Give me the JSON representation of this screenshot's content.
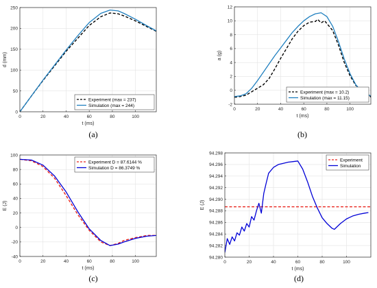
{
  "chart_data": [
    {
      "panel": "(a)",
      "type": "line",
      "xlabel": "t (ms)",
      "ylabel": "d (mm)",
      "xlim": [
        0,
        118
      ],
      "ylim": [
        0,
        250
      ],
      "xticks": [
        0,
        20,
        40,
        60,
        80,
        100
      ],
      "yticks": [
        0,
        50,
        100,
        150,
        200,
        250
      ],
      "grid": true,
      "legend_position": "bottom-right",
      "series": [
        {
          "name": "Experiment (max = 237)",
          "color": "#000000",
          "dash": "dashed",
          "x": [
            0,
            10,
            20,
            30,
            40,
            50,
            60,
            70,
            78,
            85,
            90,
            100,
            110,
            118
          ],
          "y": [
            0,
            38,
            75,
            110,
            145,
            176,
            207,
            228,
            237,
            235,
            230,
            218,
            204,
            193
          ]
        },
        {
          "name": "Simulation (max = 244)",
          "color": "#1f7fbf",
          "dash": "solid",
          "x": [
            0,
            10,
            20,
            30,
            40,
            50,
            60,
            70,
            78,
            85,
            90,
            100,
            110,
            118
          ],
          "y": [
            0,
            38,
            76,
            112,
            148,
            182,
            214,
            236,
            244,
            242,
            236,
            222,
            206,
            194
          ]
        }
      ]
    },
    {
      "panel": "(b)",
      "type": "line",
      "xlabel": "t (ms)",
      "ylabel": "a (g)",
      "xlim": [
        0,
        118
      ],
      "ylim": [
        -2,
        12
      ],
      "xticks": [
        0,
        20,
        40,
        60,
        80,
        100
      ],
      "yticks": [
        -2,
        0,
        2,
        4,
        6,
        8,
        10,
        12
      ],
      "grid": true,
      "legend_position": "bottom-right",
      "series": [
        {
          "name": "Experiment (max = 10.2)",
          "color": "#000000",
          "dash": "dashed",
          "x": [
            0,
            5,
            10,
            15,
            20,
            25,
            30,
            35,
            40,
            45,
            50,
            55,
            60,
            65,
            70,
            72,
            75,
            78,
            80,
            85,
            90,
            95,
            100,
            105,
            110,
            115,
            118
          ],
          "y": [
            -1.0,
            -0.9,
            -0.7,
            -0.2,
            0.3,
            0.8,
            1.7,
            3.1,
            4.6,
            6.0,
            7.4,
            8.5,
            9.3,
            9.8,
            9.9,
            10.2,
            9.7,
            10.0,
            9.6,
            8.6,
            6.5,
            4.0,
            2.1,
            0.7,
            0.1,
            -0.2,
            -1.0
          ]
        },
        {
          "name": "Simulation (max = 11.15)",
          "color": "#1f7fbf",
          "dash": "solid",
          "x": [
            0,
            5,
            10,
            15,
            20,
            25,
            30,
            35,
            40,
            45,
            50,
            55,
            60,
            65,
            70,
            75,
            80,
            85,
            90,
            95,
            100,
            105,
            110,
            115,
            118
          ],
          "y": [
            -0.9,
            -0.8,
            -0.5,
            0.3,
            1.4,
            2.6,
            3.8,
            5.0,
            6.1,
            7.2,
            8.3,
            9.2,
            10.0,
            10.6,
            11.0,
            11.15,
            10.6,
            9.2,
            7.0,
            4.5,
            2.4,
            0.8,
            -0.2,
            -0.6,
            -0.8
          ]
        }
      ]
    },
    {
      "panel": "(c)",
      "type": "line",
      "xlabel": "t (ms)",
      "ylabel": "E (J)",
      "xlim": [
        0,
        118
      ],
      "ylim": [
        -40,
        100
      ],
      "xticks": [
        0,
        20,
        40,
        60,
        80,
        100
      ],
      "yticks": [
        -40,
        -20,
        0,
        20,
        40,
        60,
        80,
        100
      ],
      "grid": true,
      "legend_position": "top-right",
      "series": [
        {
          "name": "Experiment D = 87.6144 %",
          "color": "#e8231c",
          "dash": "dashed",
          "x": [
            0,
            10,
            20,
            30,
            40,
            50,
            60,
            70,
            78,
            85,
            90,
            100,
            110,
            118
          ],
          "y": [
            94,
            92,
            84,
            68,
            44,
            18,
            -4,
            -20,
            -25,
            -22,
            -18,
            -14,
            -11,
            -11
          ]
        },
        {
          "name": "Simulation D = 86.3749 %",
          "color": "#0000d6",
          "dash": "solid",
          "x": [
            0,
            10,
            20,
            30,
            40,
            50,
            60,
            70,
            78,
            85,
            90,
            100,
            110,
            118
          ],
          "y": [
            94,
            93,
            86,
            71,
            49,
            22,
            -2,
            -18,
            -25,
            -23,
            -20,
            -15,
            -12,
            -11
          ]
        }
      ]
    },
    {
      "panel": "(d)",
      "type": "line",
      "xlabel": "t (ms)",
      "ylabel": "E (J)",
      "xlim": [
        0,
        120
      ],
      "ylim": [
        94.28,
        94.298
      ],
      "xticks": [
        0,
        20,
        40,
        60,
        80,
        100
      ],
      "yticks": [
        94.28,
        94.282,
        94.284,
        94.286,
        94.288,
        94.29,
        94.292,
        94.294,
        94.296,
        94.298
      ],
      "grid": true,
      "legend_position": "top-right",
      "series": [
        {
          "name": "Experiment",
          "color": "#e8231c",
          "dash": "dashed",
          "x": [
            0,
            120
          ],
          "y": [
            94.2887,
            94.2887
          ]
        },
        {
          "name": "Simulation",
          "color": "#0000d6",
          "dash": "solid",
          "x": [
            0,
            2,
            4,
            6,
            8,
            10,
            12,
            14,
            16,
            18,
            20,
            22,
            24,
            26,
            28,
            30,
            32,
            34,
            36,
            40,
            44,
            48,
            52,
            56,
            60,
            64,
            68,
            72,
            76,
            80,
            84,
            88,
            90,
            95,
            100,
            105,
            110,
            115,
            118
          ],
          "y": [
            94.2808,
            94.2832,
            94.2822,
            94.2835,
            94.2828,
            94.2842,
            94.2838,
            94.2852,
            94.2845,
            94.2858,
            94.2852,
            94.287,
            94.2864,
            94.288,
            94.2893,
            94.2876,
            94.291,
            94.2928,
            94.2945,
            94.2955,
            94.296,
            94.2962,
            94.2964,
            94.2965,
            94.2966,
            94.2952,
            94.293,
            94.2905,
            94.2885,
            94.2868,
            94.2858,
            94.285,
            94.2848,
            94.2858,
            94.2866,
            94.2871,
            94.2874,
            94.2876,
            94.2877
          ]
        }
      ]
    }
  ]
}
